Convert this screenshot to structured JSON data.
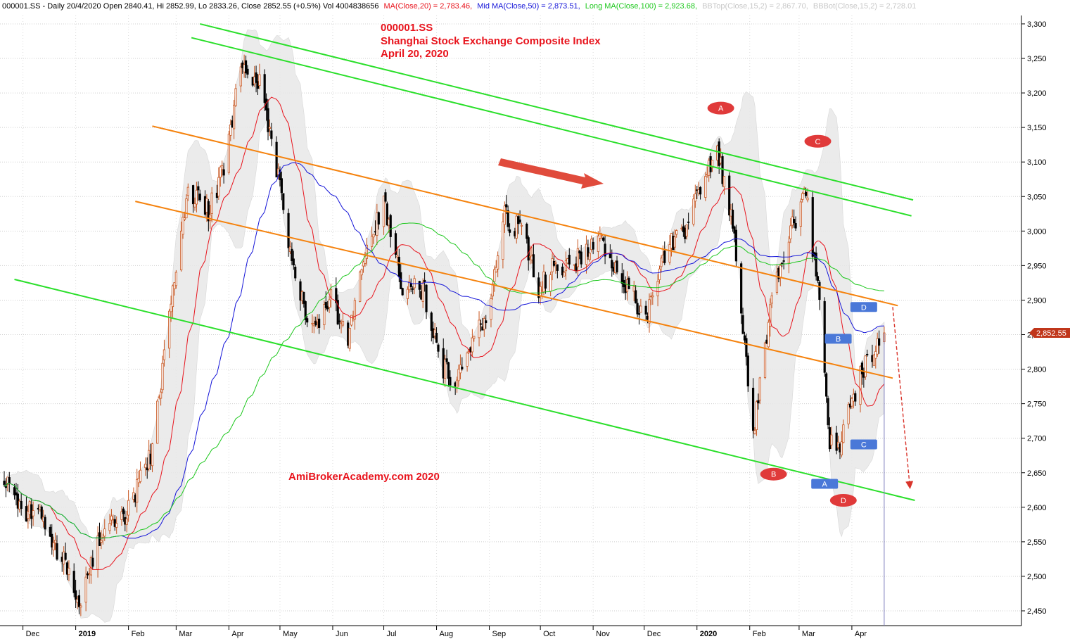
{
  "header": {
    "symbol_line": "000001.SS - Daily 20/4/2020 Open 2840.41, Hi 2852.99, Lo 2833.26, Close 2852.55 (+0.5%) Vol 4004838656",
    "ma20": "MA(Close,20) = 2,783.46,",
    "ma50": "Mid MA(Close,50) = 2,873.51,",
    "ma100": "Long MA(Close,100) = 2,923.68,",
    "bbtop": "BBTop(Close,15,2) = 2,867.70,",
    "bbbot": "BBBot(Close,15,2) = 2,728.01"
  },
  "title_block": {
    "symbol": "000001.SS",
    "name": "Shanghai Stock Exchange Composite Index",
    "date": "April 20, 2020"
  },
  "watermark": "AmiBrokerAcademy.com   2020",
  "last_price": "2,852.55",
  "colors": {
    "up": "#c8551f",
    "down": "#000000",
    "ma20": "#e8141d",
    "ma50": "#1515d8",
    "ma100": "#1ec81e",
    "channel_green": "#2adf2a",
    "channel_orange": "#f5820d",
    "band": "#e8e8e8",
    "marker_red": "#e03a3a",
    "marker_blue": "#4a78d8"
  },
  "chart_data": {
    "type": "candlestick",
    "y_axis": {
      "min": 2430,
      "max": 3310,
      "ticks": [
        "2,450",
        "2,500",
        "2,550",
        "2,600",
        "2,650",
        "2,700",
        "2,750",
        "2,800",
        "2,850",
        "2,900",
        "2,950",
        "3,000",
        "3,050",
        "3,100",
        "3,150",
        "3,200",
        "3,250",
        "3,300"
      ],
      "position": "right",
      "grid": true
    },
    "x_axis_labels": [
      "Dec",
      "2019",
      "Feb",
      "Mar",
      "Apr",
      "May",
      "Jun",
      "Jul",
      "Aug",
      "Sep",
      "Oct",
      "Nov",
      "Dec",
      "2020",
      "Feb",
      "Mar",
      "Apr"
    ],
    "close_keypoints": [
      [
        "2018-11-20",
        2640
      ],
      [
        "2018-11-30",
        2590
      ],
      [
        "2018-12-10",
        2600
      ],
      [
        "2018-12-25",
        2520
      ],
      [
        "2019-01-03",
        2465
      ],
      [
        "2019-01-15",
        2560
      ],
      [
        "2019-01-31",
        2590
      ],
      [
        "2019-02-15",
        2680
      ],
      [
        "2019-02-28",
        2940
      ],
      [
        "2019-03-08",
        3060
      ],
      [
        "2019-03-20",
        3030
      ],
      [
        "2019-03-29",
        3090
      ],
      [
        "2019-04-08",
        3240
      ],
      [
        "2019-04-19",
        3220
      ],
      [
        "2019-04-30",
        3080
      ],
      [
        "2019-05-10",
        2920
      ],
      [
        "2019-05-20",
        2860
      ],
      [
        "2019-05-31",
        2900
      ],
      [
        "2019-06-10",
        2850
      ],
      [
        "2019-06-20",
        2980
      ],
      [
        "2019-07-01",
        3040
      ],
      [
        "2019-07-12",
        2920
      ],
      [
        "2019-07-25",
        2910
      ],
      [
        "2019-08-05",
        2800
      ],
      [
        "2019-08-12",
        2780
      ],
      [
        "2019-08-30",
        2880
      ],
      [
        "2019-09-10",
        3020
      ],
      [
        "2019-09-20",
        3000
      ],
      [
        "2019-09-30",
        2920
      ],
      [
        "2019-10-10",
        2950
      ],
      [
        "2019-10-25",
        2960
      ],
      [
        "2019-11-05",
        2990
      ],
      [
        "2019-11-20",
        2920
      ],
      [
        "2019-12-02",
        2880
      ],
      [
        "2019-12-13",
        2970
      ],
      [
        "2019-12-25",
        3000
      ],
      [
        "2020-01-07",
        3090
      ],
      [
        "2020-01-14",
        3110
      ],
      [
        "2020-01-23",
        2990
      ],
      [
        "2020-02-03",
        2700
      ],
      [
        "2020-02-14",
        2910
      ],
      [
        "2020-02-25",
        3000
      ],
      [
        "2020-03-05",
        3060
      ],
      [
        "2020-03-12",
        2920
      ],
      [
        "2020-03-19",
        2700
      ],
      [
        "2020-03-23",
        2670
      ],
      [
        "2020-03-31",
        2750
      ],
      [
        "2020-04-08",
        2800
      ],
      [
        "2020-04-20",
        2852.55
      ]
    ],
    "series": [
      {
        "name": "MA(Close,20)"
      },
      {
        "name": "Mid MA(Close,50)"
      },
      {
        "name": "Long MA(Close,100)"
      },
      {
        "name": "BBTop(Close,15,2)"
      },
      {
        "name": "BBBot(Close,15,2)"
      }
    ],
    "trend_lines": [
      {
        "color": "channel_green",
        "from": [
          "2019-03-15",
          3300
        ],
        "to": [
          "2020-05-07",
          3045
        ]
      },
      {
        "color": "channel_green",
        "from": [
          "2019-03-10",
          3280
        ],
        "to": [
          "2020-05-06",
          3022
        ]
      },
      {
        "color": "channel_green",
        "from": [
          "2018-11-26",
          2930
        ],
        "to": [
          "2020-05-08",
          2610
        ]
      },
      {
        "color": "channel_orange",
        "from": [
          "2019-02-15",
          3152
        ],
        "to": [
          "2020-04-28",
          2892
        ]
      },
      {
        "color": "channel_orange",
        "from": [
          "2019-02-05",
          3043
        ],
        "to": [
          "2020-04-25",
          2787
        ]
      }
    ],
    "markers": [
      {
        "label": "A",
        "style": "red-oval",
        "date": "2020-01-15",
        "price": 3178
      },
      {
        "label": "C",
        "style": "red-oval",
        "date": "2020-03-12",
        "price": 3130
      },
      {
        "label": "B",
        "style": "red-oval",
        "date": "2020-02-15",
        "price": 2648
      },
      {
        "label": "D",
        "style": "red-oval",
        "date": "2020-03-27",
        "price": 2610
      },
      {
        "label": "D",
        "style": "blue-box",
        "date": "2020-04-08",
        "price": 2890
      },
      {
        "label": "B",
        "style": "blue-box",
        "date": "2020-03-24",
        "price": 2844
      },
      {
        "label": "C",
        "style": "blue-box",
        "date": "2020-04-08",
        "price": 2691
      },
      {
        "label": "A",
        "style": "blue-box",
        "date": "2020-03-16",
        "price": 2634
      }
    ]
  }
}
